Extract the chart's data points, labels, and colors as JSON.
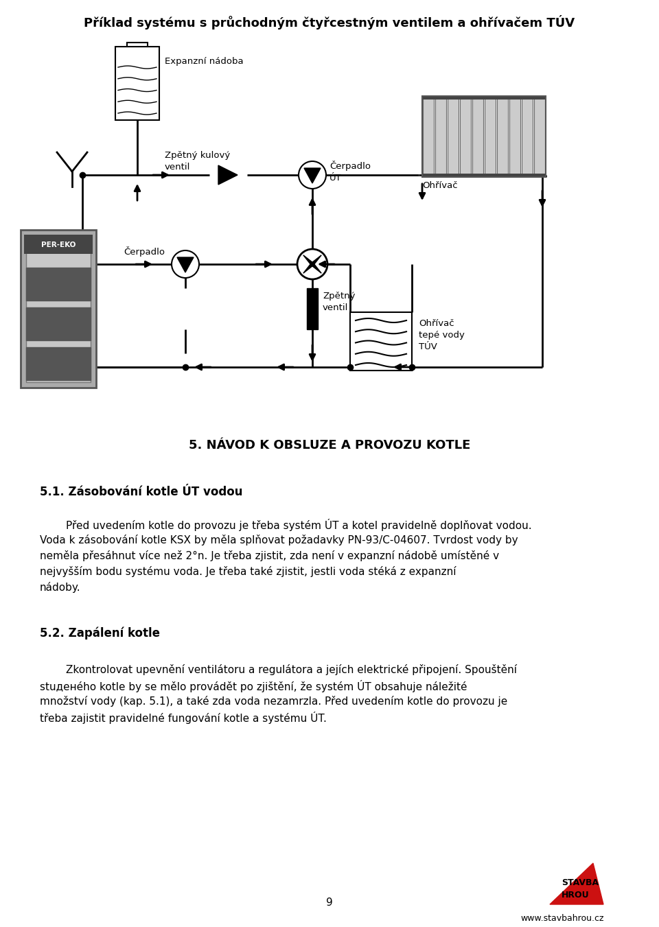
{
  "title": "Příklad systému s průchodným čtyřcestným ventilem a ohřívačem TÚV",
  "section_title": "5. NÁVOD K OBSLUZE A PROVOZU KOTLE",
  "sub1_title": "5.1. Zásobování kotle ÚT vodou",
  "sub1_para": "Před uvedením kotle do provozu je třeba systém ÚT a kotel pravidelně doplňovat vodou. Voda k zásobování kotle KSX by měla splňovat požadavky PN-93/C-04607. Tvrdost vody by neměla přesáhnut více než 2°n. Je třeba zjistit, zda není v expanzní nádobě umístěné v nejvyšším bodu systému voda. Je třeba také zjistit, jestli voda stéká z expanzní nádoby.",
  "sub2_title": "5.2. Zapálení kotle",
  "sub2_para": "Zkontrolovat upevnění ventilátoru a regulátora a jejích elektrické připojení. Spouštění stuденého kotle by se mělo provádět po zjištění, že systém ÚT obsahuje náležité množství vody (kap. 5.1), a také zda voda nezamrzla. Před uvedením kotle do provozu je třeba zajistit pravidelné fungování kotle a systému ÚT.",
  "label_expanzni": "Expanzní nádoba",
  "label_zpetny_kulovy": "Zpětný kulový\nventil",
  "label_cerpadlo_ut": "Čerpadlo\nÚT",
  "label_ohrivac": "Ohřívač",
  "label_cerpadlo": "Čerpadlo",
  "label_zpetny_ventil": "Zpětný\nventil",
  "label_ohrivac_tuv": "Ohřívač\ntepé vody\nTÚV",
  "page_number": "9",
  "website": "www.stavbahrou.cz",
  "bg_color": "#ffffff",
  "text_color": "#000000",
  "boiler_color": "#888888",
  "boiler_panel_color": "#555555",
  "boiler_dark": "#333333",
  "rad_gray": "#cccccc"
}
